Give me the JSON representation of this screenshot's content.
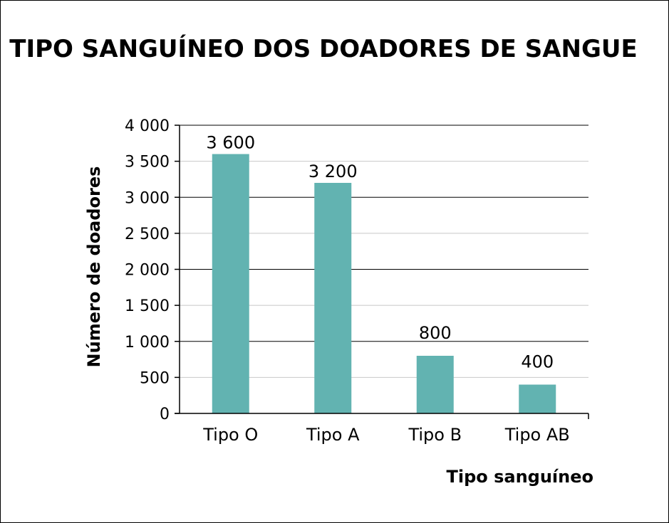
{
  "chart_data": {
    "type": "bar",
    "title": "TIPO SANGUÍNEO DOS DOADORES DE SANGUE",
    "xlabel": "Tipo sanguíneo",
    "ylabel": "Número de doadores",
    "categories": [
      "Tipo O",
      "Tipo A",
      "Tipo B",
      "Tipo AB"
    ],
    "values": [
      3600,
      3200,
      800,
      400
    ],
    "data_labels": [
      "3 600",
      "3 200",
      "800",
      "400"
    ],
    "ylim": [
      0,
      4000
    ],
    "yticks": [
      0,
      500,
      1000,
      1500,
      2000,
      2500,
      3000,
      3500,
      4000
    ],
    "ytick_labels": [
      "0",
      "500",
      "1 000",
      "1 500",
      "2 000",
      "2 500",
      "3 000",
      "3 500",
      "4 000"
    ],
    "grid": true,
    "bar_color": "#62b3b1"
  }
}
